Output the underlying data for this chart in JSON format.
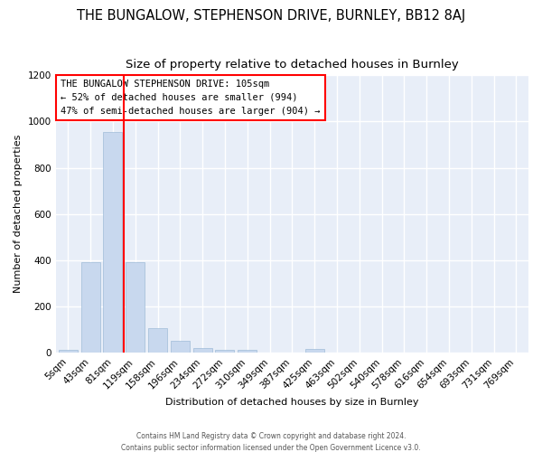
{
  "title": "THE BUNGALOW, STEPHENSON DRIVE, BURNLEY, BB12 8AJ",
  "subtitle": "Size of property relative to detached houses in Burnley",
  "xlabel": "Distribution of detached houses by size in Burnley",
  "ylabel": "Number of detached properties",
  "categories": [
    "5sqm",
    "43sqm",
    "81sqm",
    "119sqm",
    "158sqm",
    "196sqm",
    "234sqm",
    "272sqm",
    "310sqm",
    "349sqm",
    "387sqm",
    "425sqm",
    "463sqm",
    "502sqm",
    "540sqm",
    "578sqm",
    "616sqm",
    "654sqm",
    "693sqm",
    "731sqm",
    "769sqm"
  ],
  "values": [
    10,
    390,
    955,
    390,
    105,
    50,
    20,
    10,
    10,
    0,
    0,
    15,
    0,
    0,
    0,
    0,
    0,
    0,
    0,
    0,
    0
  ],
  "bar_color": "#c8d8ee",
  "bar_edge_color": "#a0bcd8",
  "red_line_x": 2.5,
  "annotation_line1": "THE BUNGALOW STEPHENSON DRIVE: 105sqm",
  "annotation_line2": "← 52% of detached houses are smaller (994)",
  "annotation_line3": "47% of semi-detached houses are larger (904) →",
  "ylim": [
    0,
    1200
  ],
  "yticks": [
    0,
    200,
    400,
    600,
    800,
    1000,
    1200
  ],
  "footer1": "Contains HM Land Registry data © Crown copyright and database right 2024.",
  "footer2": "Contains public sector information licensed under the Open Government Licence v3.0.",
  "plot_bg_color": "#e8eef8",
  "fig_bg_color": "#ffffff",
  "grid_color": "#ffffff",
  "title_fontsize": 10.5,
  "subtitle_fontsize": 9.5,
  "annotation_fontsize": 7.5,
  "axis_label_fontsize": 8,
  "tick_fontsize": 7.5
}
